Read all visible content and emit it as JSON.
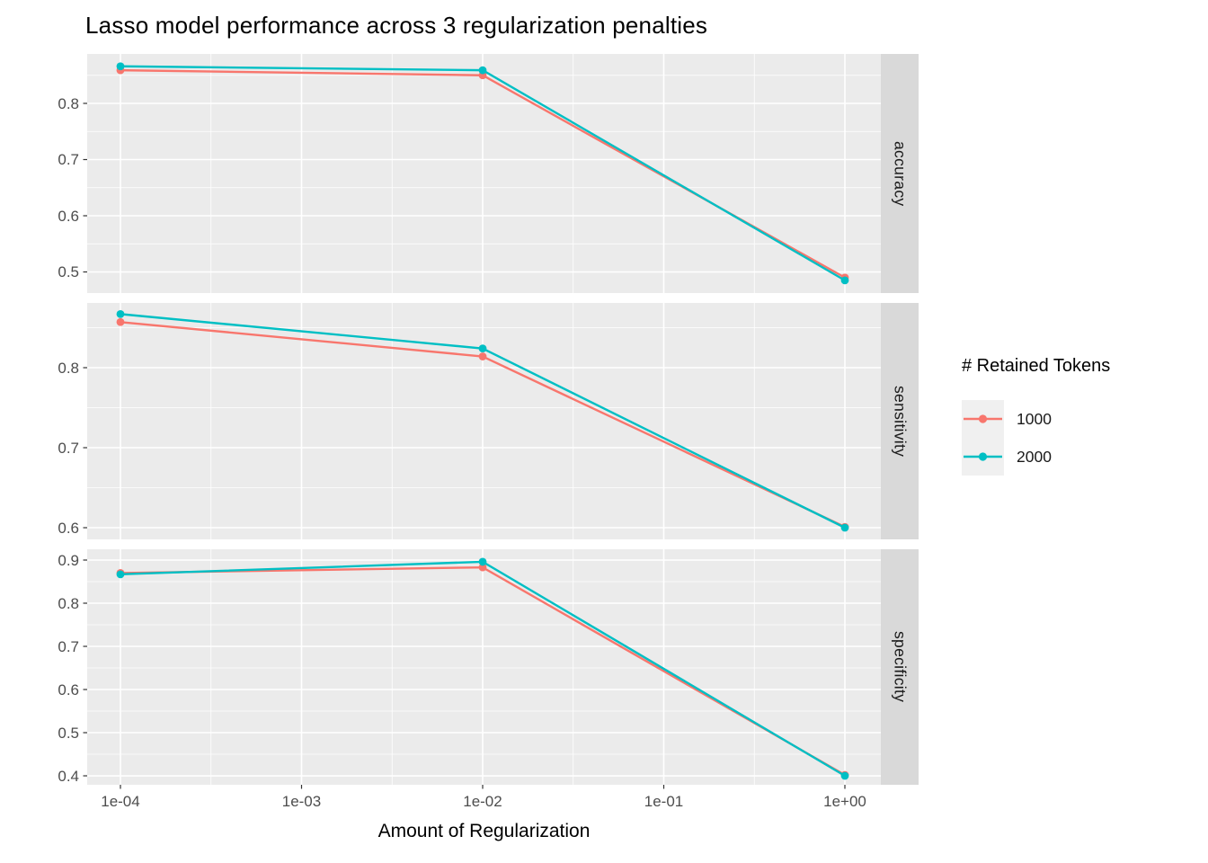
{
  "title": "Lasso model performance across 3 regularization penalties",
  "chart_data": {
    "type": "line",
    "title": "Lasso model performance across 3 regularization penalties",
    "xlabel": "Amount of Regularization",
    "ylabel": "",
    "x_scale": "log10",
    "grid": true,
    "panel_bg": "#ebebeb",
    "strip_bg": "#d9d9d9",
    "x": [
      0.0001,
      0.01,
      1.0
    ],
    "x_ticks": [
      {
        "label": "1e-04",
        "log": -4
      },
      {
        "label": "1e-03",
        "log": -3
      },
      {
        "label": "1e-02",
        "log": -2
      },
      {
        "label": "1e-01",
        "log": -1
      },
      {
        "label": "1e+00",
        "log": 0
      }
    ],
    "x_minor_log": [
      -3.5,
      -2.5,
      -1.5,
      -0.5
    ],
    "xlim_log": [
      -4.1836,
      0.1985
    ],
    "legend": {
      "title": "# Retained Tokens",
      "position": "right",
      "items": [
        {
          "label": "1000",
          "color": "#F8766D"
        },
        {
          "label": "2000",
          "color": "#00BFC4"
        }
      ]
    },
    "facets": [
      {
        "label": "accuracy",
        "ylim": [
          0.4624,
          0.888
        ],
        "y_ticks": [
          0.5,
          0.6,
          0.7,
          0.8
        ],
        "y_minor": [
          0.45,
          0.55,
          0.65,
          0.75,
          0.85
        ],
        "series": [
          {
            "name": "1000",
            "color": "#F8766D",
            "values": [
              0.859,
              0.85,
              0.49
            ]
          },
          {
            "name": "2000",
            "color": "#00BFC4",
            "values": [
              0.866,
              0.859,
              0.485
            ]
          }
        ]
      },
      {
        "label": "sensitivity",
        "ylim": [
          0.5854,
          0.8809
        ],
        "y_ticks": [
          0.6,
          0.7,
          0.8
        ],
        "y_minor": [
          0.55,
          0.65,
          0.75,
          0.85
        ],
        "series": [
          {
            "name": "1000",
            "color": "#F8766D",
            "values": [
              0.857,
              0.814,
              0.601
            ]
          },
          {
            "name": "2000",
            "color": "#00BFC4",
            "values": [
              0.867,
              0.824,
              0.6
            ]
          }
        ]
      },
      {
        "label": "specificity",
        "ylim": [
          0.3792,
          0.925
        ],
        "y_ticks": [
          0.4,
          0.5,
          0.6,
          0.7,
          0.8,
          0.9
        ],
        "y_minor": [
          0.35,
          0.45,
          0.55,
          0.65,
          0.75,
          0.85,
          0.95
        ],
        "series": [
          {
            "name": "1000",
            "color": "#F8766D",
            "values": [
              0.87,
              0.883,
              0.402
            ]
          },
          {
            "name": "2000",
            "color": "#00BFC4",
            "values": [
              0.867,
              0.896,
              0.4
            ]
          }
        ]
      }
    ]
  }
}
